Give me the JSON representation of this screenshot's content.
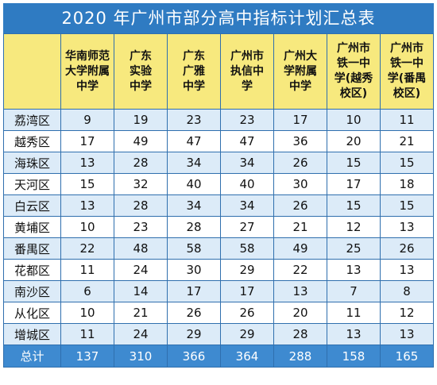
{
  "title": "2020 年广州市部分高中指标计划汇总表",
  "columns": [
    [
      "华南师范",
      "大学附属",
      "中学"
    ],
    [
      "广东",
      "实验",
      "中学"
    ],
    [
      "广东",
      "广雅",
      "中学"
    ],
    [
      "广州市",
      "执信中",
      "学"
    ],
    [
      "广州大",
      "学附属",
      "中学"
    ],
    [
      "广州市",
      "铁一中",
      "学(越秀",
      "校区)"
    ],
    [
      "广州市",
      "铁一中",
      "学(番禺",
      "校区)"
    ]
  ],
  "rows": [
    {
      "district": "荔湾区",
      "values": [
        "9",
        "19",
        "23",
        "23",
        "17",
        "10",
        "11"
      ]
    },
    {
      "district": "越秀区",
      "values": [
        "17",
        "49",
        "47",
        "47",
        "36",
        "20",
        "21"
      ]
    },
    {
      "district": "海珠区",
      "values": [
        "13",
        "28",
        "34",
        "34",
        "26",
        "15",
        "15"
      ]
    },
    {
      "district": "天河区",
      "values": [
        "15",
        "32",
        "40",
        "40",
        "30",
        "17",
        "18"
      ]
    },
    {
      "district": "白云区",
      "values": [
        "13",
        "28",
        "34",
        "34",
        "26",
        "15",
        "15"
      ]
    },
    {
      "district": "黄埔区",
      "values": [
        "10",
        "23",
        "28",
        "27",
        "21",
        "12",
        "13"
      ]
    },
    {
      "district": "番禺区",
      "values": [
        "22",
        "48",
        "58",
        "58",
        "49",
        "25",
        "26"
      ]
    },
    {
      "district": "花都区",
      "values": [
        "11",
        "24",
        "30",
        "29",
        "22",
        "13",
        "13"
      ]
    },
    {
      "district": "南沙区",
      "values": [
        "6",
        "14",
        "17",
        "17",
        "13",
        "7",
        "8"
      ]
    },
    {
      "district": "从化区",
      "values": [
        "10",
        "21",
        "26",
        "26",
        "20",
        "11",
        "12"
      ]
    },
    {
      "district": "增城区",
      "values": [
        "11",
        "24",
        "29",
        "29",
        "28",
        "13",
        "13"
      ]
    }
  ],
  "total": {
    "label": "总计",
    "values": [
      "137",
      "310",
      "366",
      "364",
      "288",
      "158",
      "165"
    ]
  },
  "colors": {
    "title_bg": "#2f7bc2",
    "header_bg": "#f7e97e",
    "stripe_bg": "#dcebf8",
    "total_bg": "#3e8ad0",
    "border": "#2f6fae"
  }
}
